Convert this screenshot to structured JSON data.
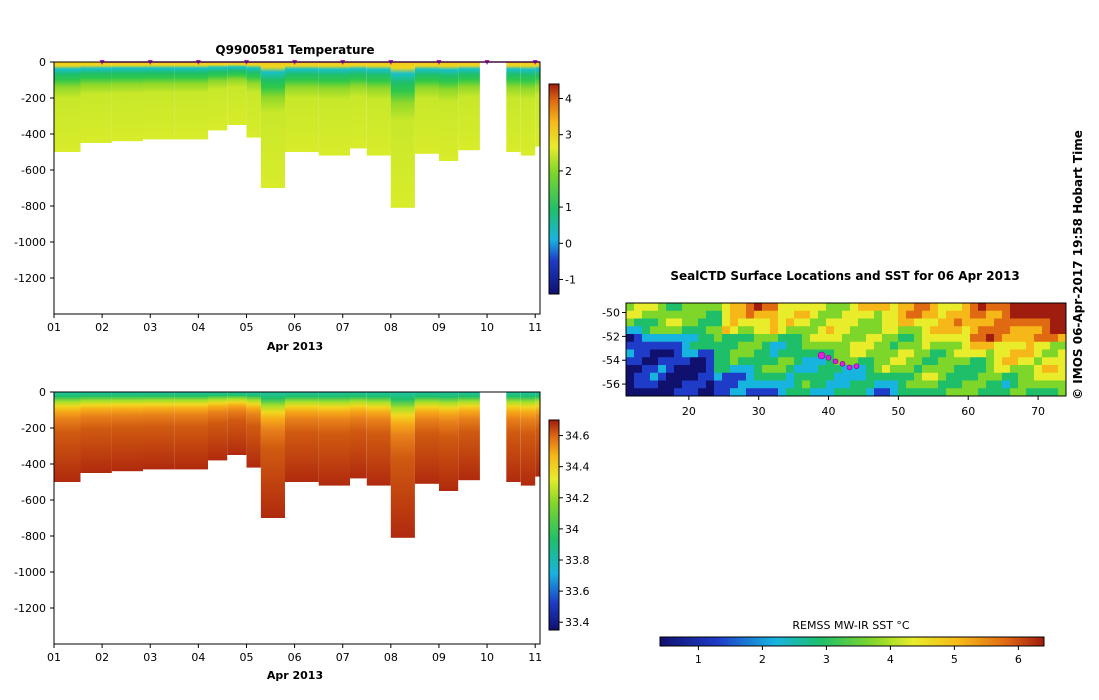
{
  "chart_data": [
    {
      "id": "temperature",
      "type": "heatmap",
      "title": "Q9900581  Temperature",
      "xlabel": "Apr 2013",
      "x_ticks": [
        "01",
        "02",
        "03",
        "04",
        "05",
        "06",
        "07",
        "08",
        "09",
        "10",
        "11"
      ],
      "y_ticks": [
        "0",
        "-200",
        "-400",
        "-600",
        "-800",
        "-1000",
        "-1200"
      ],
      "ylim": [
        -1400,
        0
      ],
      "xlim_days": [
        1,
        11.1
      ],
      "colorbar": {
        "ticks": [
          "-1",
          "0",
          "1",
          "2",
          "3",
          "4"
        ],
        "range": [
          -1.4,
          4.4
        ]
      },
      "surface_markers_days": [
        2,
        3,
        4,
        5,
        6,
        7,
        8,
        9,
        10,
        11
      ],
      "profiles": [
        {
          "day": 1.0,
          "max_depth": 500
        },
        {
          "day": 1.55,
          "max_depth": 450
        },
        {
          "day": 2.2,
          "max_depth": 440
        },
        {
          "day": 2.85,
          "max_depth": 430
        },
        {
          "day": 3.5,
          "max_depth": 430
        },
        {
          "day": 4.2,
          "max_depth": 380
        },
        {
          "day": 4.6,
          "max_depth": 350
        },
        {
          "day": 5.0,
          "max_depth": 420
        },
        {
          "day": 5.3,
          "max_depth": 700
        },
        {
          "day": 5.8,
          "max_depth": 500
        },
        {
          "day": 6.5,
          "max_depth": 520
        },
        {
          "day": 7.15,
          "max_depth": 480
        },
        {
          "day": 7.5,
          "max_depth": 520
        },
        {
          "day": 8.0,
          "max_depth": 810
        },
        {
          "day": 8.5,
          "max_depth": 510
        },
        {
          "day": 9.0,
          "max_depth": 550
        },
        {
          "day": 9.4,
          "max_depth": 490
        },
        {
          "day": 10.4,
          "max_depth": 500
        },
        {
          "day": 10.7,
          "max_depth": 520
        },
        {
          "day": 11.0,
          "max_depth": 470
        }
      ]
    },
    {
      "id": "salinity",
      "type": "heatmap",
      "title": "",
      "xlabel": "Apr 2013",
      "x_ticks": [
        "01",
        "02",
        "03",
        "04",
        "05",
        "06",
        "07",
        "08",
        "09",
        "10",
        "11"
      ],
      "y_ticks": [
        "0",
        "-200",
        "-400",
        "-600",
        "-800",
        "-1000",
        "-1200"
      ],
      "ylim": [
        -1400,
        0
      ],
      "xlim_days": [
        1,
        11.1
      ],
      "colorbar": {
        "ticks": [
          "34.6",
          "34.4",
          "34.2",
          "34",
          "33.8",
          "33.6",
          "33.4"
        ],
        "range": [
          33.35,
          34.7
        ]
      }
    },
    {
      "id": "sst-map",
      "type": "heatmap",
      "title": "SealCTD Surface Locations and SST for 06 Apr 2013",
      "x_ticks": [
        "20",
        "30",
        "40",
        "50",
        "60",
        "70"
      ],
      "y_ticks": [
        "-50",
        "-52",
        "-54",
        "-56"
      ],
      "xlim": [
        11,
        74
      ],
      "ylim": [
        -57,
        -49.2
      ],
      "track_points": [
        [
          39.0,
          -53.6
        ],
        [
          40.0,
          -53.8
        ],
        [
          41.0,
          -54.1
        ],
        [
          42.0,
          -54.3
        ],
        [
          43.0,
          -54.6
        ],
        [
          44.0,
          -54.5
        ]
      ],
      "colorbar": {
        "label": "REMSS MW-IR SST °C",
        "ticks": [
          "1",
          "2",
          "3",
          "4",
          "5",
          "6"
        ],
        "range": [
          0.4,
          6.4
        ]
      }
    }
  ],
  "side_label": "© IMOS 06-Apr-2017 19:58 Hobart Time"
}
